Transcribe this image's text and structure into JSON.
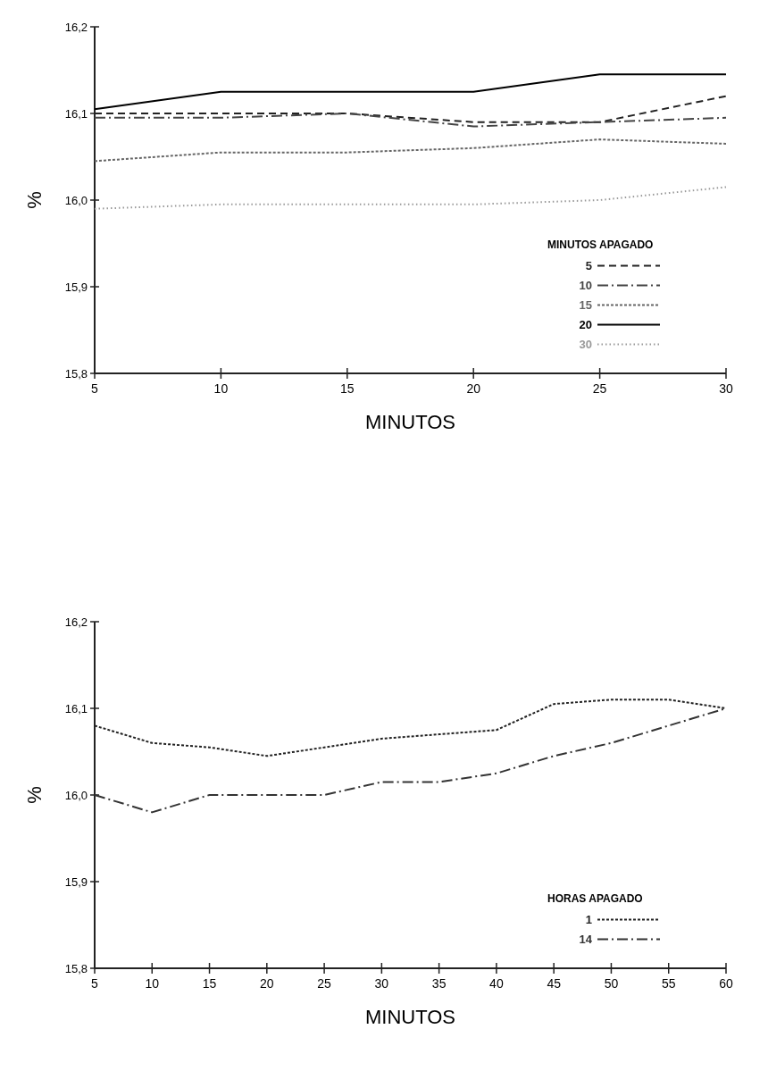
{
  "chart_data": [
    {
      "type": "line",
      "xlabel": "MINUTOS",
      "ylabel": "%",
      "legend_title": "MINUTOS APAGADO",
      "legend": "bottom right",
      "grid": false,
      "x": [
        5,
        10,
        15,
        20,
        25,
        30
      ],
      "xlim": [
        5,
        30
      ],
      "xticks": [
        5,
        10,
        15,
        20,
        25,
        30
      ],
      "ylim": [
        15.8,
        16.2
      ],
      "yticks": [
        {
          "value": 15.8,
          "label": "15,8"
        },
        {
          "value": 15.9,
          "label": "15,9"
        },
        {
          "value": 16.0,
          "label": "16,0"
        },
        {
          "value": 16.1,
          "label": "16,1"
        },
        {
          "value": 16.2,
          "label": "16,2"
        }
      ],
      "series": [
        {
          "name": "5",
          "color": "#222222",
          "line_style": "dashed",
          "values": [
            16.1,
            16.1,
            16.1,
            16.09,
            16.09,
            16.12
          ]
        },
        {
          "name": "10",
          "color": "#444444",
          "line_style": "dashdot",
          "values": [
            16.095,
            16.095,
            16.1,
            16.085,
            16.09,
            16.095
          ]
        },
        {
          "name": "15",
          "color": "#666666",
          "line_style": "densedot",
          "values": [
            16.045,
            16.055,
            16.055,
            16.06,
            16.07,
            16.065
          ]
        },
        {
          "name": "20",
          "color": "#000000",
          "line_style": "solid",
          "values": [
            16.105,
            16.125,
            16.125,
            16.125,
            16.145,
            16.145
          ]
        },
        {
          "name": "30",
          "color": "#999999",
          "line_style": "dotted",
          "values": [
            15.99,
            15.995,
            15.995,
            15.995,
            16.0,
            16.015
          ]
        }
      ]
    },
    {
      "type": "line",
      "xlabel": "MINUTOS",
      "ylabel": "%",
      "legend_title": "HORAS APAGADO",
      "legend": "bottom right",
      "grid": false,
      "x": [
        5,
        10,
        15,
        20,
        25,
        30,
        35,
        40,
        45,
        50,
        55,
        60
      ],
      "xlim": [
        5,
        60
      ],
      "xticks": [
        5,
        10,
        15,
        20,
        25,
        30,
        35,
        40,
        45,
        50,
        55,
        60
      ],
      "ylim": [
        15.8,
        16.2
      ],
      "yticks": [
        {
          "value": 15.8,
          "label": "15,8"
        },
        {
          "value": 15.9,
          "label": "15,9"
        },
        {
          "value": 16.0,
          "label": "16,0"
        },
        {
          "value": 16.1,
          "label": "16,1"
        },
        {
          "value": 16.2,
          "label": "16,2"
        }
      ],
      "series": [
        {
          "name": "1",
          "color": "#222222",
          "line_style": "densedot",
          "values": [
            16.08,
            16.06,
            16.055,
            16.045,
            16.055,
            16.065,
            16.07,
            16.075,
            16.105,
            16.11,
            16.11,
            16.1
          ]
        },
        {
          "name": "14",
          "color": "#333333",
          "line_style": "dashdot",
          "values": [
            16.0,
            15.98,
            16.0,
            16.0,
            16.0,
            16.015,
            16.015,
            16.025,
            16.045,
            16.06,
            16.08,
            16.1
          ]
        }
      ]
    }
  ]
}
